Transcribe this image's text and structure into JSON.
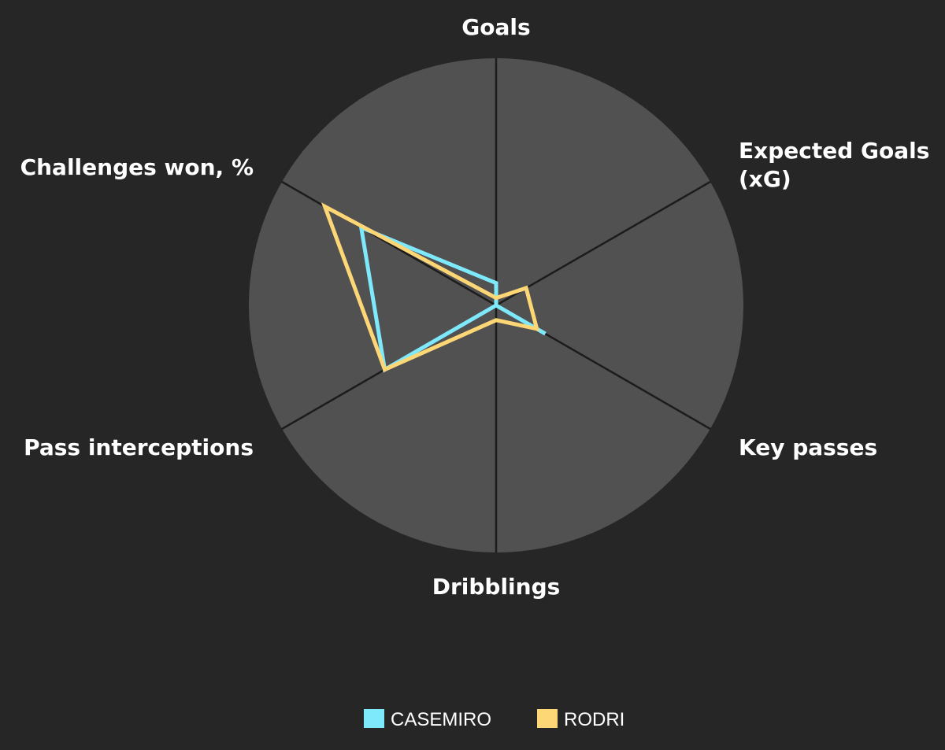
{
  "chart_data": {
    "type": "radar",
    "axes": [
      "Goals",
      "Expected Goals (xG)",
      "Key passes",
      "Dribblings",
      "Pass interceptions",
      "Challenges won, %"
    ],
    "axis_label_lines": [
      [
        "Goals"
      ],
      [
        "Expected Goals",
        "(xG)"
      ],
      [
        "Key passes"
      ],
      [
        "Dribblings"
      ],
      [
        "Pass interceptions"
      ],
      [
        "Challenges won, %"
      ]
    ],
    "range": [
      0,
      100
    ],
    "grid": false,
    "legend_position": "bottom",
    "series": [
      {
        "name": "CASEMIRO",
        "color": "#7de9fb",
        "values": [
          9,
          0,
          23,
          0,
          52,
          63
        ]
      },
      {
        "name": "RODRI",
        "color": "#fdd675",
        "values": [
          3,
          14,
          19,
          6,
          52,
          80
        ]
      }
    ],
    "colors": {
      "background": "#262626",
      "plot_area": "#515151",
      "axis_line": "#1c1c1c"
    }
  }
}
